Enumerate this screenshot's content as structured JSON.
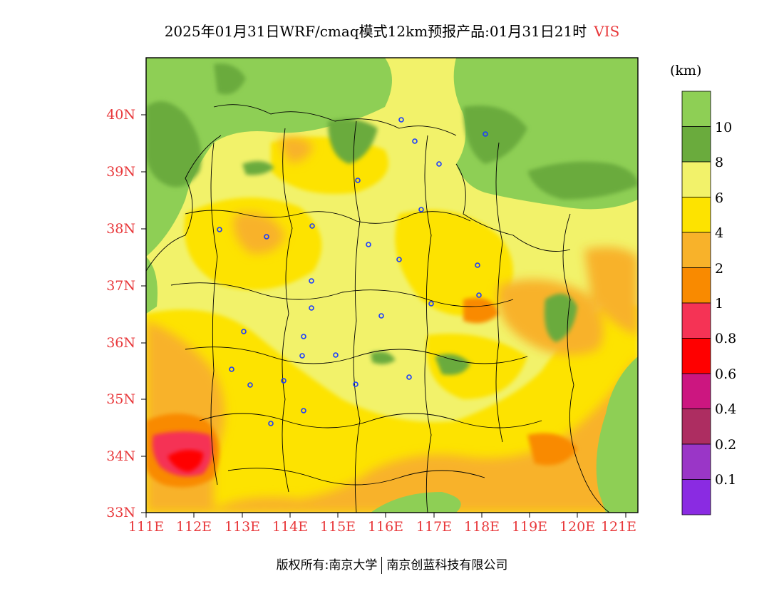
{
  "title": {
    "text": "2025年01月31日WRF/cmaq模式12km预报产品:01月31日21时",
    "variable": "VIS"
  },
  "colorbar": {
    "unit": "(km)",
    "labels": [
      "10",
      "8",
      "6",
      "4",
      "2",
      "1",
      "0.8",
      "0.6",
      "0.4",
      "0.2",
      "0.1"
    ],
    "colors": [
      "#8ecf55",
      "#6aab3d",
      "#f2f26a",
      "#fde300",
      "#f8b22a",
      "#f98a00",
      "#f53355",
      "#ff0000",
      "#cc1680",
      "#ad2d61",
      "#9a36c7",
      "#8a2be2"
    ]
  },
  "axes": {
    "lat_ticks": [
      "40N",
      "39N",
      "38N",
      "37N",
      "36N",
      "35N",
      "34N",
      "33N"
    ],
    "lon_ticks": [
      "111E",
      "112E",
      "113E",
      "114E",
      "115E",
      "116E",
      "117E",
      "118E",
      "119E",
      "120E",
      "121E"
    ]
  },
  "footer": {
    "left": "版权所有:南京大学",
    "right": "南京创蓝科技有限公司"
  }
}
